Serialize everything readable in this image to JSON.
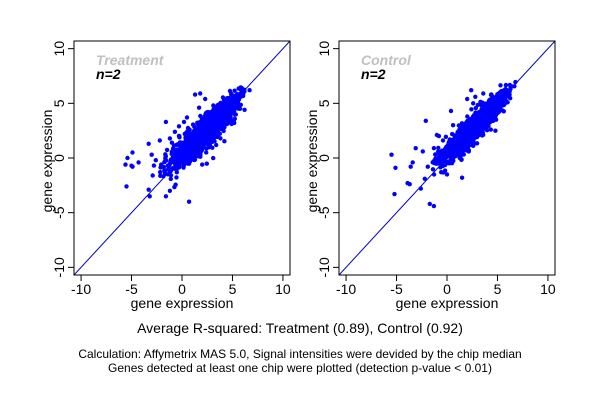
{
  "chart_data": [
    {
      "type": "scatter",
      "title": "Treatment",
      "annotation": "n=2",
      "xlabel": "gene expression",
      "ylabel": "gene expression",
      "xlim": [
        -10.7,
        10.7
      ],
      "ylim": [
        -10.7,
        10.7
      ],
      "xticks": [
        -10,
        -5,
        0,
        5,
        10
      ],
      "yticks": [
        -10,
        -5,
        0,
        5,
        10
      ],
      "xtick_labels": [
        "-10",
        "-5",
        "0",
        "5",
        "10"
      ],
      "ytick_labels": [
        "-10",
        "-5",
        "0",
        "5",
        "10"
      ],
      "reference_line": {
        "type": "identity",
        "slope": 1,
        "intercept": 0
      },
      "point_color": "#0000ff",
      "line_color": "#0000cc",
      "title_color": "#c0c0c0",
      "grid": false,
      "dense_band": {
        "x_range": [
          -2.7,
          7.2
        ],
        "spread": 0.75,
        "count": 1400
      },
      "outliers": [
        [
          -5.4,
          0.0
        ],
        [
          -5.6,
          -0.6
        ],
        [
          -5.5,
          -2.6
        ],
        [
          -4.9,
          0.5
        ],
        [
          -4.9,
          -0.8
        ],
        [
          -5.0,
          -0.7
        ],
        [
          -4.3,
          -0.4
        ],
        [
          -3.3,
          1.3
        ],
        [
          -2.9,
          -1.6
        ],
        [
          -3.2,
          -3.5
        ],
        [
          -1.6,
          -3.5
        ],
        [
          0.7,
          -4.0
        ],
        [
          -1.6,
          3.3
        ],
        [
          1.3,
          5.8
        ],
        [
          0.5,
          3.7
        ],
        [
          3.1,
          4.8
        ],
        [
          5.1,
          5.3
        ],
        [
          2.3,
          5.4
        ],
        [
          -3.0,
          0.3
        ],
        [
          -2.6,
          -0.2
        ],
        [
          -2.2,
          1.6
        ],
        [
          -0.7,
          2.4
        ],
        [
          1.8,
          5.9
        ],
        [
          -3.3,
          -2.9
        ],
        [
          -1.2,
          -3.0
        ],
        [
          -0.3,
          2.9
        ],
        [
          0.2,
          3.3
        ],
        [
          2.0,
          -0.6
        ],
        [
          3.8,
          1.8
        ],
        [
          -1.0,
          1.4
        ]
      ]
    },
    {
      "type": "scatter",
      "title": "Control",
      "annotation": "n=2",
      "xlabel": "gene expression",
      "ylabel": "gene expression",
      "xlim": [
        -10.7,
        10.7
      ],
      "ylim": [
        -10.7,
        10.7
      ],
      "xticks": [
        -10,
        -5,
        0,
        5,
        10
      ],
      "yticks": [
        -10,
        -5,
        0,
        5,
        10
      ],
      "xtick_labels": [
        "-10",
        "-5",
        "0",
        "5",
        "10"
      ],
      "ytick_labels": [
        "-10",
        "-5",
        "0",
        "5",
        "10"
      ],
      "reference_line": {
        "type": "identity",
        "slope": 1,
        "intercept": 0
      },
      "point_color": "#0000ff",
      "line_color": "#0000cc",
      "title_color": "#c0c0c0",
      "grid": false,
      "dense_band": {
        "x_range": [
          -2.0,
          7.3
        ],
        "spread": 0.6,
        "count": 1400
      },
      "outliers": [
        [
          -5.5,
          0.3
        ],
        [
          -5.1,
          -0.9
        ],
        [
          -5.2,
          -3.3
        ],
        [
          -3.1,
          0.9
        ],
        [
          -3.4,
          -0.4
        ],
        [
          -2.6,
          -2.8
        ],
        [
          -1.7,
          -4.2
        ],
        [
          -1.3,
          -4.4
        ],
        [
          -2.1,
          3.4
        ],
        [
          0.6,
          3.0
        ],
        [
          2.6,
          5.0
        ],
        [
          4.1,
          4.0
        ],
        [
          1.5,
          -1.8
        ],
        [
          -3.7,
          -2.4
        ],
        [
          -3.9,
          -2.3
        ],
        [
          -3.6,
          -0.8
        ],
        [
          -2.4,
          0.6
        ],
        [
          -1.3,
          0.9
        ],
        [
          -0.4,
          1.6
        ],
        [
          0.4,
          4.3
        ],
        [
          2.4,
          6.2
        ],
        [
          2.0,
          5.4
        ],
        [
          2.8,
          5.6
        ],
        [
          3.6,
          5.9
        ],
        [
          -0.8,
          2.0
        ],
        [
          -1.9,
          -0.8
        ],
        [
          -2.2,
          -1.9
        ],
        [
          0.0,
          -1.5
        ],
        [
          4.8,
          2.5
        ],
        [
          -1.0,
          2.1
        ]
      ]
    }
  ],
  "summary": {
    "r_squared_line": "Average R-squared: Treatment (0.89), Control (0.92)",
    "r_squared": {
      "Treatment": 0.89,
      "Control": 0.92
    },
    "note_1": "Calculation: Affymetrix MAS 5.0, Signal intensities were devided by the chip median",
    "note_2": "Genes detected at least one chip were plotted (detection p-value < 0.01)"
  }
}
